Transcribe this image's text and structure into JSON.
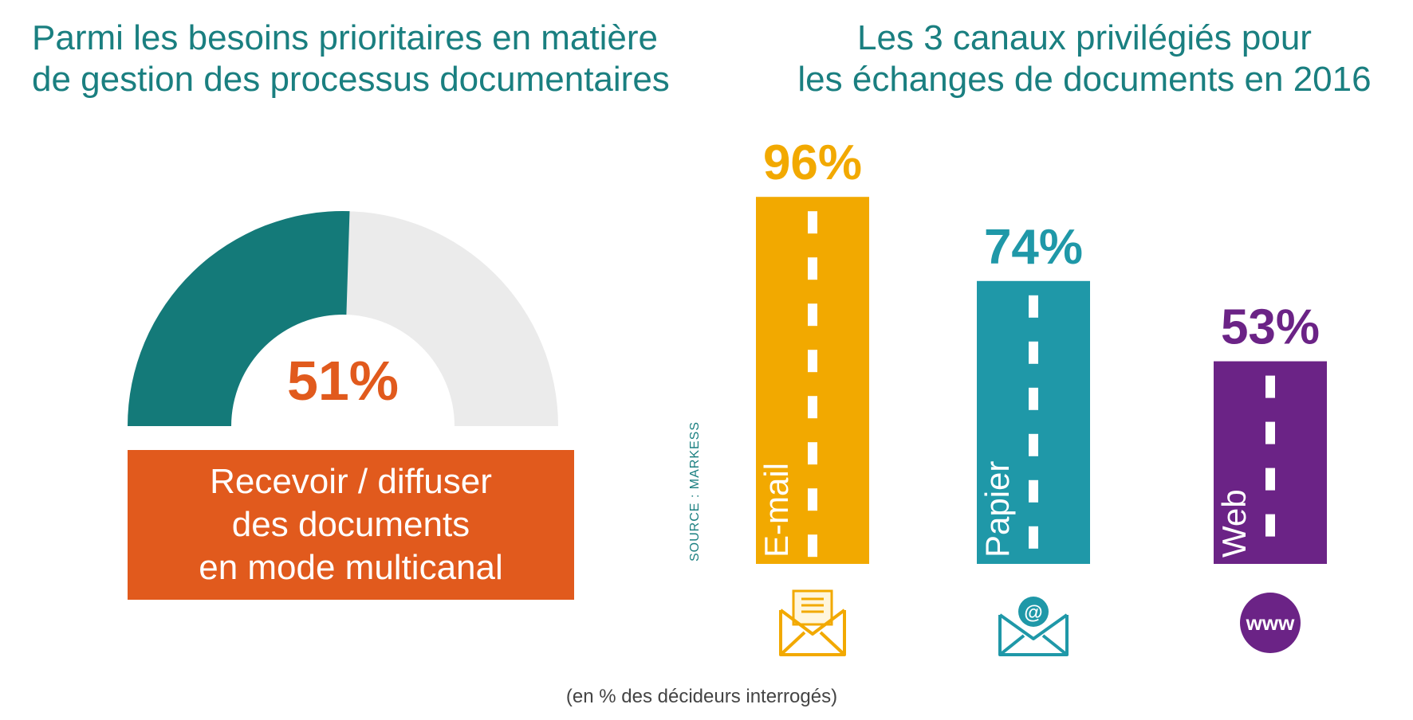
{
  "left": {
    "title_line1": "Parmi les besoins prioritaires en matière",
    "title_line2": "de gestion des processus documentaires",
    "gauge_percent": "51%",
    "gauge_fraction": 0.51,
    "box_line1": "Recevoir / diffuser",
    "box_line2": "des documents",
    "box_line3": "en mode multicanal"
  },
  "right": {
    "title_line1": "Les 3 canaux privilégiés pour",
    "title_line2": "les échanges de documents en 2016",
    "source": "SOURCE : MARKESS"
  },
  "footnote": "(en % des décideurs interrogés)",
  "colors": {
    "teal_title": "#1a7f80",
    "gauge_teal": "#147a79",
    "gauge_grey": "#ebebeb",
    "orange": "#e15a1d",
    "email": "#f2a900",
    "papier": "#1f98a8",
    "web": "#6b2386"
  },
  "chart_data": {
    "type": "bar",
    "categories": [
      "E-mail",
      "Papier",
      "Web"
    ],
    "values": [
      96,
      74,
      53
    ],
    "value_labels": [
      "96%",
      "74%",
      "53%"
    ],
    "colors": [
      "#f2a900",
      "#1f98a8",
      "#6b2386"
    ],
    "icons": [
      "envelope-letter-icon",
      "envelope-at-icon",
      "www-globe-icon"
    ],
    "www_text": "www",
    "at_text": "@",
    "ylim": [
      0,
      100
    ]
  }
}
